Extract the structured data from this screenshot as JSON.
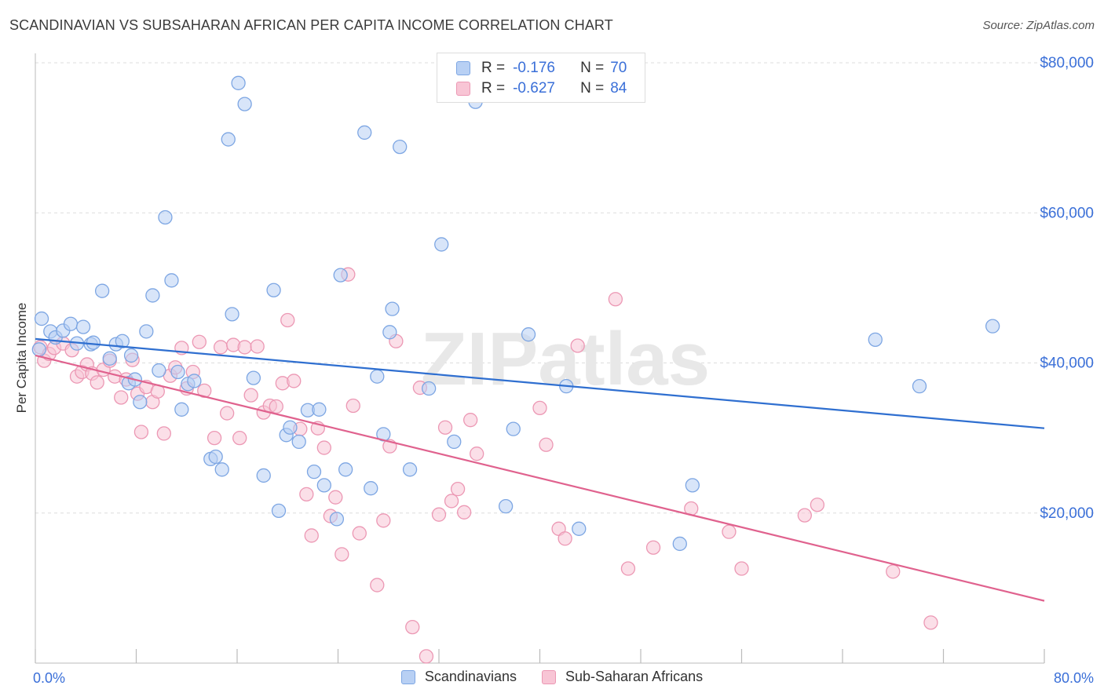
{
  "title": "SCANDINAVIAN VS SUBSAHARAN AFRICAN PER CAPITA INCOME CORRELATION CHART",
  "source": "Source: ZipAtlas.com",
  "watermark": "ZIPatlas",
  "legend_top": [
    {
      "r_label": "R =",
      "r_value": "-0.176",
      "n_label": "N =",
      "n_value": "70"
    },
    {
      "r_label": "R =",
      "r_value": "-0.627",
      "n_label": "N =",
      "n_value": "84"
    }
  ],
  "colors": {
    "blue_fill": "#b8d0f4",
    "blue_stroke": "#7da6e3",
    "blue_line": "#2f6fd0",
    "pink_fill": "#f8c5d5",
    "pink_stroke": "#ec98b4",
    "pink_line": "#e0628e",
    "axis_text": "#3a6fd8",
    "grid": "#dddddd"
  },
  "chart_data": {
    "type": "scatter",
    "title": "SCANDINAVIAN VS SUBSAHARAN AFRICAN PER CAPITA INCOME CORRELATION CHART",
    "xlabel": "",
    "ylabel": "Per Capita Income",
    "xlim": [
      0,
      80
    ],
    "ylim": [
      0,
      80000
    ],
    "x_tick_labels": [
      "0.0%",
      "80.0%"
    ],
    "y_ticks": [
      20000,
      40000,
      60000,
      80000
    ],
    "y_tick_labels": [
      "$20,000",
      "$40,000",
      "$60,000",
      "$80,000"
    ],
    "grid": true,
    "legend_placement": "bottom",
    "series": [
      {
        "name": "Scandinavians",
        "color": "#b8d0f4",
        "trend": {
          "x": [
            0,
            80
          ],
          "y": [
            43200,
            31300
          ]
        },
        "points": [
          [
            0.5,
            45900
          ],
          [
            1.2,
            44200
          ],
          [
            1.6,
            43400
          ],
          [
            2.2,
            44300
          ],
          [
            2.8,
            45200
          ],
          [
            3.3,
            42600
          ],
          [
            3.8,
            44800
          ],
          [
            4.4,
            42500
          ],
          [
            4.6,
            42700
          ],
          [
            5.3,
            49600
          ],
          [
            5.9,
            40600
          ],
          [
            6.4,
            42500
          ],
          [
            6.9,
            42900
          ],
          [
            7.4,
            37300
          ],
          [
            7.9,
            37800
          ],
          [
            8.3,
            34800
          ],
          [
            8.8,
            44200
          ],
          [
            9.3,
            49000
          ],
          [
            9.8,
            39000
          ],
          [
            10.3,
            59400
          ],
          [
            10.8,
            51000
          ],
          [
            11.3,
            38800
          ],
          [
            11.6,
            33800
          ],
          [
            12.1,
            37200
          ],
          [
            12.6,
            37600
          ],
          [
            13.9,
            27200
          ],
          [
            14.3,
            27500
          ],
          [
            14.8,
            25800
          ],
          [
            15.3,
            69800
          ],
          [
            15.6,
            46500
          ],
          [
            16.1,
            77300
          ],
          [
            16.6,
            74500
          ],
          [
            17.3,
            38000
          ],
          [
            18.1,
            25000
          ],
          [
            18.9,
            49700
          ],
          [
            19.3,
            20300
          ],
          [
            19.9,
            30400
          ],
          [
            20.2,
            31400
          ],
          [
            20.9,
            29500
          ],
          [
            21.6,
            33700
          ],
          [
            22.1,
            25500
          ],
          [
            22.5,
            33800
          ],
          [
            22.9,
            23700
          ],
          [
            23.9,
            19200
          ],
          [
            24.2,
            51700
          ],
          [
            24.6,
            25800
          ],
          [
            26.1,
            70700
          ],
          [
            26.6,
            23300
          ],
          [
            27.1,
            38200
          ],
          [
            27.6,
            30500
          ],
          [
            28.1,
            44100
          ],
          [
            28.3,
            47200
          ],
          [
            28.9,
            68800
          ],
          [
            29.7,
            25800
          ],
          [
            31.2,
            36600
          ],
          [
            32.2,
            55800
          ],
          [
            33.2,
            29500
          ],
          [
            34.9,
            74800
          ],
          [
            37.3,
            20900
          ],
          [
            37.9,
            31200
          ],
          [
            39.1,
            43800
          ],
          [
            42.1,
            36900
          ],
          [
            43.1,
            17900
          ],
          [
            51.1,
            15900
          ],
          [
            52.1,
            23700
          ],
          [
            66.6,
            43100
          ],
          [
            70.1,
            36900
          ],
          [
            75.9,
            44900
          ],
          [
            0.3,
            41800
          ],
          [
            7.6,
            41000
          ]
        ]
      },
      {
        "name": "Sub-Saharan Africans",
        "color": "#f8c5d5",
        "trend": {
          "x": [
            0,
            80
          ],
          "y": [
            41000,
            8300
          ]
        },
        "points": [
          [
            0.4,
            42100
          ],
          [
            0.7,
            40300
          ],
          [
            1.1,
            41200
          ],
          [
            1.5,
            42000
          ],
          [
            2.2,
            42600
          ],
          [
            2.9,
            41700
          ],
          [
            3.3,
            38200
          ],
          [
            3.7,
            38800
          ],
          [
            4.1,
            39800
          ],
          [
            4.5,
            38600
          ],
          [
            4.9,
            37400
          ],
          [
            5.4,
            39100
          ],
          [
            5.9,
            40300
          ],
          [
            6.3,
            38200
          ],
          [
            6.8,
            35400
          ],
          [
            7.2,
            37800
          ],
          [
            7.7,
            40400
          ],
          [
            8.1,
            35900
          ],
          [
            8.4,
            30800
          ],
          [
            8.8,
            36800
          ],
          [
            9.3,
            34800
          ],
          [
            9.7,
            36200
          ],
          [
            10.2,
            30600
          ],
          [
            10.7,
            38300
          ],
          [
            11.1,
            39400
          ],
          [
            11.6,
            42000
          ],
          [
            12.0,
            36600
          ],
          [
            12.5,
            38800
          ],
          [
            13.0,
            42800
          ],
          [
            13.4,
            36300
          ],
          [
            14.2,
            30000
          ],
          [
            14.7,
            42100
          ],
          [
            15.2,
            33300
          ],
          [
            15.7,
            42400
          ],
          [
            16.2,
            30000
          ],
          [
            16.6,
            42100
          ],
          [
            17.1,
            35700
          ],
          [
            17.6,
            42200
          ],
          [
            18.1,
            33400
          ],
          [
            18.6,
            34300
          ],
          [
            19.1,
            34200
          ],
          [
            19.6,
            37300
          ],
          [
            20.0,
            45700
          ],
          [
            20.5,
            37600
          ],
          [
            21.0,
            31200
          ],
          [
            21.5,
            22500
          ],
          [
            21.9,
            17000
          ],
          [
            22.4,
            31300
          ],
          [
            22.9,
            28700
          ],
          [
            23.4,
            19600
          ],
          [
            23.8,
            22100
          ],
          [
            24.3,
            14500
          ],
          [
            24.8,
            51800
          ],
          [
            25.2,
            34300
          ],
          [
            25.7,
            17300
          ],
          [
            27.1,
            10400
          ],
          [
            27.6,
            19000
          ],
          [
            28.1,
            28900
          ],
          [
            28.6,
            42900
          ],
          [
            29.9,
            4800
          ],
          [
            30.5,
            36700
          ],
          [
            31.0,
            900
          ],
          [
            32.0,
            19800
          ],
          [
            32.5,
            31400
          ],
          [
            33.0,
            21600
          ],
          [
            33.5,
            23200
          ],
          [
            34.0,
            20100
          ],
          [
            34.5,
            32400
          ],
          [
            35.0,
            27900
          ],
          [
            40.0,
            34000
          ],
          [
            40.5,
            29100
          ],
          [
            41.5,
            17900
          ],
          [
            42.0,
            16600
          ],
          [
            43.0,
            42300
          ],
          [
            46.0,
            48500
          ],
          [
            47.0,
            12600
          ],
          [
            49.0,
            15400
          ],
          [
            52.0,
            20600
          ],
          [
            55.0,
            17500
          ],
          [
            56.0,
            12600
          ],
          [
            61.0,
            19700
          ],
          [
            62.0,
            21100
          ],
          [
            68.0,
            12200
          ],
          [
            71.0,
            5400
          ]
        ]
      }
    ]
  },
  "legend_bottom": [
    "Scandinavians",
    "Sub-Saharan Africans"
  ]
}
